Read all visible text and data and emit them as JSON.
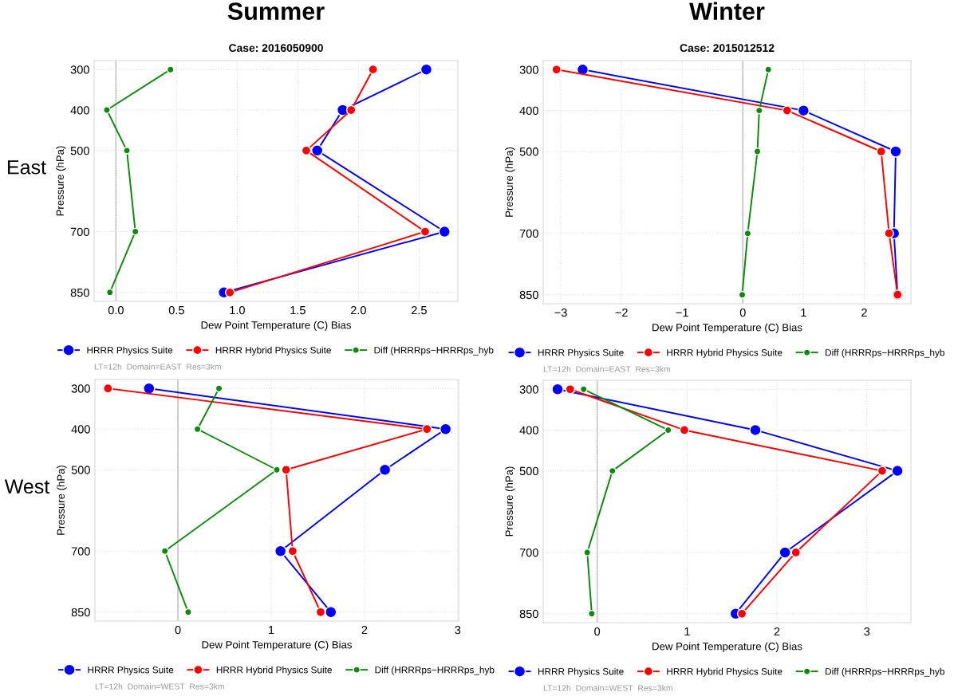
{
  "chart_data": [
    {
      "type": "line",
      "title": "Summer",
      "subtitle": "Case: 2016050900",
      "xlabel": "Dew Point Temperature (C) Bias",
      "ylabel": "Pressure (hPa)",
      "annotations": [
        "LT=12h  Domain=EAST  Res=3km",
        "East"
      ],
      "series": [
        {
          "name": "HRRR Physics Suite",
          "color": "#0000ff",
          "x": [
            2.56,
            1.87,
            1.66,
            2.71,
            0.89
          ],
          "values": [
            300,
            400,
            500,
            700,
            850
          ]
        },
        {
          "name": "HRRR Hybrid Physics Suite",
          "color": "#ff0000",
          "x": [
            2.12,
            1.94,
            1.57,
            2.55,
            0.94
          ],
          "values": [
            300,
            400,
            500,
            700,
            850
          ]
        },
        {
          "name": "Diff (HRRRps−HRRRps_hyb",
          "color": "#0b8a0b",
          "x": [
            0.45,
            -0.075,
            0.09,
            0.16,
            -0.05
          ],
          "values": [
            300,
            400,
            500,
            700,
            850
          ]
        }
      ],
      "xlim": [
        -0.18,
        2.82
      ],
      "xticks": [
        {
          "value": 0,
          "label": "0.0"
        },
        {
          "value": 0.5,
          "label": "0.5"
        },
        {
          "value": 1,
          "label": "1.0"
        },
        {
          "value": 1.5,
          "label": "1.5"
        },
        {
          "value": 2,
          "label": "2.0"
        },
        {
          "value": 2.5,
          "label": "2.5"
        }
      ],
      "ylim": [
        872,
        278
      ],
      "yticks": [
        300,
        400,
        500,
        700,
        850
      ],
      "ref_lines": [
        {
          "axis": "x",
          "value": 0,
          "color": "#b0b0b0"
        }
      ],
      "grid": true,
      "legend": "bottom",
      "marker": "circle",
      "line_style": "solid"
    },
    {
      "type": "line",
      "title": "Winter",
      "subtitle": "Case: 2015012512",
      "xlabel": "Dew Point Temperature (C) Bias",
      "ylabel": "Pressure (hPa)",
      "annotations": [
        "LT=12h  Domain=EAST  Res=3km"
      ],
      "series": [
        {
          "name": "HRRR Physics Suite",
          "color": "#0000ff",
          "x": [
            -2.64,
            1.0,
            2.52,
            2.49,
            2.55
          ],
          "values": [
            300,
            400,
            500,
            700,
            850
          ]
        },
        {
          "name": "HRRR Hybrid Physics Suite",
          "color": "#ff0000",
          "x": [
            -3.07,
            0.73,
            2.28,
            2.41,
            2.55
          ],
          "values": [
            300,
            400,
            500,
            700,
            850
          ]
        },
        {
          "name": "Diff (HRRRps−HRRRps_hyb",
          "color": "#0b8a0b",
          "x": [
            0.42,
            0.27,
            0.24,
            0.08,
            -0.01
          ],
          "values": [
            300,
            400,
            500,
            700,
            850
          ]
        }
      ],
      "xlim": [
        -3.29,
        2.77
      ],
      "xticks": [
        {
          "value": -3,
          "label": "−3"
        },
        {
          "value": -2,
          "label": "−2"
        },
        {
          "value": -1,
          "label": "−1"
        },
        0,
        1,
        2
      ],
      "ylim": [
        872,
        278
      ],
      "yticks": [
        300,
        400,
        500,
        700,
        850
      ],
      "ref_lines": [
        {
          "axis": "x",
          "value": 0,
          "color": "#b0b0b0"
        }
      ],
      "grid": true,
      "legend": "bottom",
      "marker": "circle",
      "line_style": "solid"
    },
    {
      "type": "line",
      "xlabel": "Dew Point Temperature (C) Bias",
      "ylabel": "Pressure (hPa)",
      "annotations": [
        "LT=12h  Domain=WEST  Res=3km",
        "West"
      ],
      "series": [
        {
          "name": "HRRR Physics Suite",
          "color": "#0000ff",
          "x": [
            -0.31,
            2.87,
            2.22,
            1.1,
            1.64
          ],
          "values": [
            300,
            400,
            500,
            700,
            850
          ]
        },
        {
          "name": "HRRR Hybrid Physics Suite",
          "color": "#ff0000",
          "x": [
            -0.75,
            2.67,
            1.16,
            1.23,
            1.53
          ],
          "values": [
            300,
            400,
            500,
            700,
            850
          ]
        },
        {
          "name": "Diff (HRRRps−HRRRps_hyb",
          "color": "#0b8a0b",
          "x": [
            0.44,
            0.21,
            1.06,
            -0.14,
            0.11
          ],
          "values": [
            300,
            400,
            500,
            700,
            850
          ]
        }
      ],
      "xlim": [
        -0.89,
        3.01
      ],
      "xticks": [
        0,
        1,
        2,
        3
      ],
      "ylim": [
        872,
        278
      ],
      "yticks": [
        300,
        400,
        500,
        700,
        850
      ],
      "ref_lines": [
        {
          "axis": "x",
          "value": 0,
          "color": "#b0b0b0"
        }
      ],
      "grid": true,
      "legend": "bottom",
      "marker": "circle",
      "line_style": "solid"
    },
    {
      "type": "line",
      "xlabel": "Dew Point Temperature (C) Bias",
      "ylabel": "Pressure (hPa)",
      "annotations": [
        "LT=12h  Domain=WEST  Res=3km"
      ],
      "series": [
        {
          "name": "HRRR Physics Suite",
          "color": "#0000ff",
          "x": [
            -0.44,
            1.76,
            3.34,
            2.09,
            1.54
          ],
          "values": [
            300,
            400,
            500,
            700,
            850
          ]
        },
        {
          "name": "HRRR Hybrid Physics Suite",
          "color": "#ff0000",
          "x": [
            -0.3,
            0.97,
            3.17,
            2.21,
            1.61
          ],
          "values": [
            300,
            400,
            500,
            700,
            850
          ]
        },
        {
          "name": "Diff (HRRRps−HRRRps_hyb",
          "color": "#0b8a0b",
          "x": [
            -0.15,
            0.79,
            0.17,
            -0.11,
            -0.06
          ],
          "values": [
            300,
            400,
            500,
            700,
            850
          ]
        }
      ],
      "xlim": [
        -0.6,
        3.49
      ],
      "xticks": [
        0,
        1,
        2,
        3
      ],
      "ylim": [
        872,
        278
      ],
      "yticks": [
        300,
        400,
        500,
        700,
        850
      ],
      "ref_lines": [
        {
          "axis": "x",
          "value": 0,
          "color": "#b0b0b0"
        }
      ],
      "grid": true,
      "legend": "bottom",
      "marker": "circle",
      "line_style": "solid"
    }
  ]
}
